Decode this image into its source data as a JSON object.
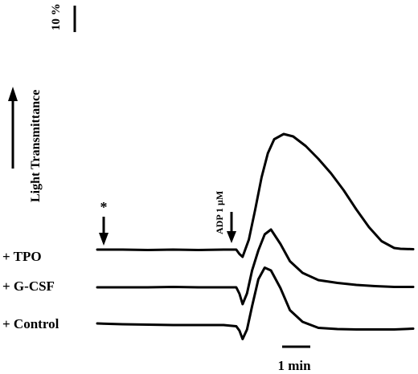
{
  "chart_data": {
    "type": "line",
    "title": "",
    "ylabel": "Light Transmittance",
    "scale_bar_y": "10 %",
    "scale_bar_x": "1 min",
    "annotations": {
      "star": "*",
      "agonist": "ADP 1 µM"
    },
    "series": [
      {
        "name": "+ TPO",
        "x": [
          0,
          0.4,
          0.8,
          1.2,
          1.6,
          2.0,
          2.2,
          2.25,
          2.3,
          2.4,
          2.5,
          2.6,
          2.7,
          2.8,
          2.95,
          3.1,
          3.3,
          3.5,
          3.7,
          3.9,
          4.1,
          4.3,
          4.5,
          4.7,
          4.8,
          5.0
        ],
        "y": [
          0,
          0,
          -0.1,
          0,
          -0.1,
          0,
          0,
          -1.1,
          -1.8,
          2.5,
          10,
          18,
          24,
          27.5,
          28.8,
          28.2,
          25.8,
          22.6,
          19,
          14.8,
          10,
          5.6,
          2.1,
          0.4,
          0.2,
          0.1
        ]
      },
      {
        "name": "+ G-CSF",
        "x": [
          0,
          0.4,
          0.8,
          1.2,
          1.6,
          2.0,
          2.2,
          2.25,
          2.3,
          2.37,
          2.45,
          2.55,
          2.65,
          2.75,
          2.9,
          3.05,
          3.25,
          3.5,
          3.8,
          4.1,
          4.4,
          4.7,
          5.0
        ],
        "y": [
          0,
          0,
          0,
          0.1,
          0,
          0,
          0,
          -1.6,
          -4.2,
          -1.5,
          4.2,
          9.2,
          13.2,
          14.4,
          10.8,
          6.5,
          3.6,
          1.8,
          1.1,
          0.6,
          0.3,
          0.1,
          0.1
        ]
      },
      {
        "name": "+ Control",
        "x": [
          0,
          0.4,
          0.8,
          1.2,
          1.6,
          2.0,
          2.2,
          2.25,
          2.3,
          2.37,
          2.45,
          2.55,
          2.65,
          2.75,
          2.9,
          3.05,
          3.25,
          3.5,
          3.8,
          4.1,
          4.4,
          4.7,
          5.0
        ],
        "y": [
          0,
          -0.2,
          -0.3,
          -0.4,
          -0.4,
          -0.4,
          -0.7,
          -1.8,
          -3.9,
          -1.5,
          4.3,
          11,
          13.9,
          13.2,
          8.8,
          3.3,
          0.4,
          -1.1,
          -1.4,
          -1.5,
          -1.5,
          -1.5,
          -1.3
        ]
      }
    ]
  }
}
